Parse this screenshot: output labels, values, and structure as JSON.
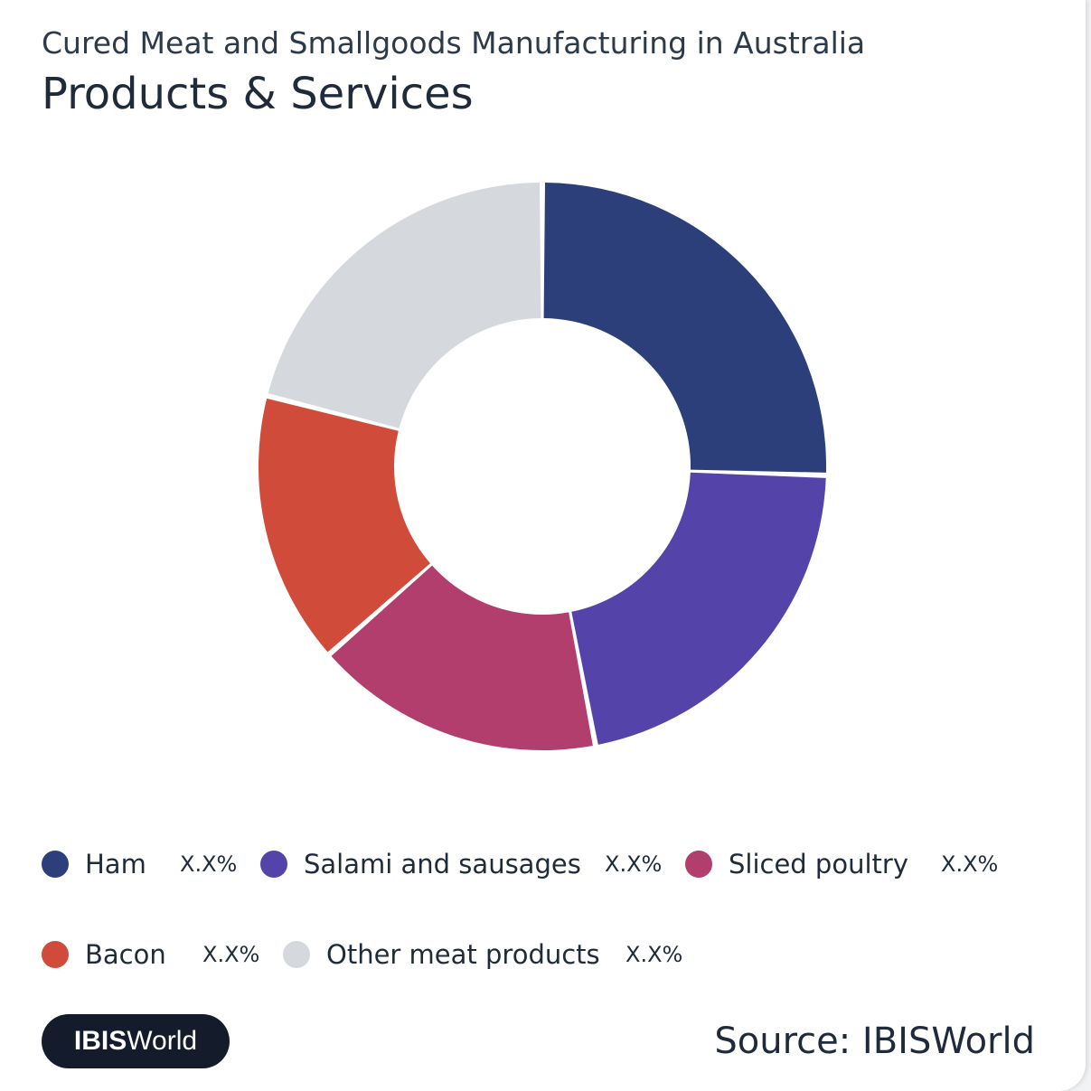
{
  "header": {
    "subtitle": "Cured Meat and Smallgoods Manufacturing in Australia",
    "title": "Products & Services"
  },
  "chart_data": {
    "type": "pie",
    "donut": true,
    "categories": [
      "Ham",
      "Salami and sausages",
      "Sliced poultry",
      "Bacon",
      "Other meat products"
    ],
    "values": [
      25.5,
      21.5,
      16.5,
      15.5,
      21.0
    ],
    "value_labels": [
      "X.X%",
      "X.X%",
      "X.X%",
      "X.X%",
      "X.X%"
    ],
    "colors": [
      "#2c3f7b",
      "#5443a8",
      "#b23e6d",
      "#d14b3a",
      "#d5d9dd"
    ],
    "legend_position": "bottom"
  },
  "footer": {
    "logo_bold": "IBIS",
    "logo_regular": "World",
    "source": "Source: IBISWorld"
  }
}
